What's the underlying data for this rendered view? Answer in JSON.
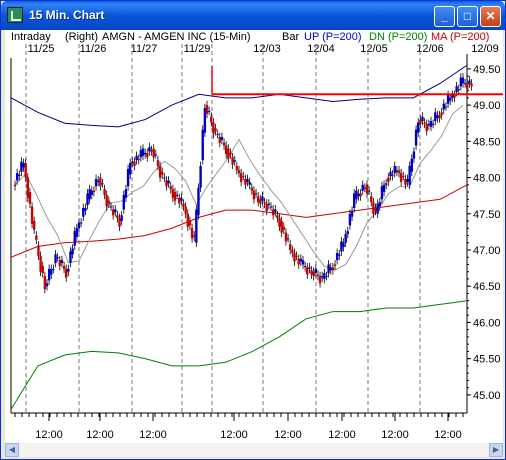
{
  "window": {
    "title": "15 Min. Chart"
  },
  "header": {
    "period": "Intraday",
    "axis_side": "(Right)",
    "symbol": "AMGN - AMGEN INC (15-Min)",
    "chart_style": "Bar",
    "up_label": "UP (P=200)",
    "dn_label": "DN (P=200)",
    "ma_label": "MA (P=200)"
  },
  "colors": {
    "up_bar": "#0000cc",
    "down_bar": "#cc0000",
    "ma": "#cc0000",
    "upper_band": "#000080",
    "lower_band": "#008000",
    "fast_ma": "#999999",
    "price_line": "#ff0000"
  },
  "x_axis": {
    "dates": [
      "11/25",
      "11/26",
      "11/27",
      "11/29",
      "12/03",
      "12/04",
      "12/05",
      "12/06",
      "12/09"
    ],
    "time_labels": [
      "12:00",
      "12:00",
      "12:00",
      "12:00",
      "12:00",
      "12:00",
      "12:00",
      "12:00"
    ]
  },
  "y_axis": {
    "ticks": [
      "49.50",
      "49.00",
      "48.50",
      "48.00",
      "47.50",
      "47.00",
      "46.50",
      "46.00",
      "45.50",
      "45.00"
    ]
  },
  "chart_data": {
    "type": "bar",
    "title": "AMGN - AMGEN INC (15-Min)",
    "ylim": [
      44.75,
      49.65
    ],
    "sessions": [
      "11/25",
      "11/26",
      "11/27",
      "11/29",
      "12/03",
      "12/04",
      "12/05",
      "12/06",
      "12/09"
    ],
    "last_price": 49.15,
    "series": [
      {
        "name": "UP (P=200)",
        "values": [
          49.1,
          48.9,
          48.75,
          48.72,
          48.7,
          48.8,
          49.0,
          49.15,
          49.1,
          49.1,
          49.15,
          49.1,
          49.05,
          49.08,
          49.1,
          49.1,
          49.3,
          49.55
        ]
      },
      {
        "name": "DN (P=200)",
        "values": [
          44.8,
          45.4,
          45.55,
          45.6,
          45.58,
          45.5,
          45.4,
          45.4,
          45.45,
          45.6,
          45.8,
          46.05,
          46.15,
          46.15,
          46.2,
          46.2,
          46.25,
          46.3
        ]
      },
      {
        "name": "MA (P=200)",
        "values": [
          46.9,
          47.05,
          47.1,
          47.12,
          47.15,
          47.2,
          47.3,
          47.45,
          47.55,
          47.55,
          47.5,
          47.45,
          47.5,
          47.55,
          47.6,
          47.65,
          47.7,
          47.9
        ]
      }
    ],
    "close": [
      47.9,
      48.2,
      47.2,
      46.5,
      46.9,
      46.7,
      47.3,
      47.7,
      48.0,
      47.6,
      47.4,
      48.2,
      48.3,
      48.4,
      48.0,
      47.8,
      47.6,
      47.1,
      49.0,
      48.6,
      48.4,
      48.1,
      47.9,
      47.7,
      47.6,
      47.4,
      47.0,
      46.8,
      46.7,
      46.6,
      46.8,
      47.1,
      47.7,
      47.9,
      47.5,
      48.0,
      48.1,
      47.9,
      48.8,
      48.7,
      48.9,
      49.1,
      49.3
    ]
  }
}
